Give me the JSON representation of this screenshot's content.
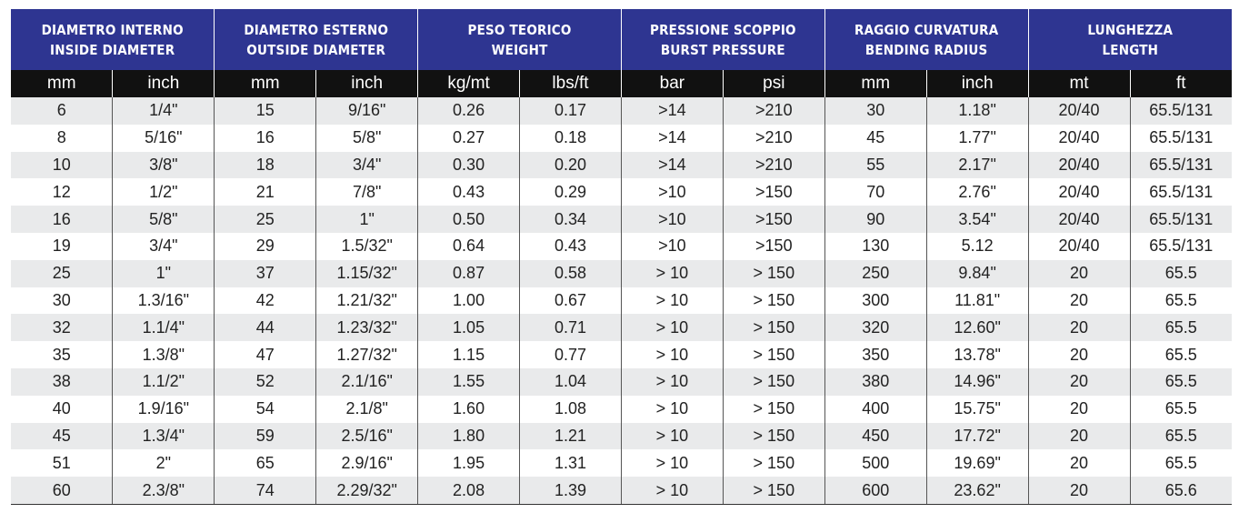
{
  "groups": [
    {
      "it": "DIAMETRO INTERNO",
      "en": "INSIDE DIAMETER"
    },
    {
      "it": "DIAMETRO ESTERNO",
      "en": "OUTSIDE DIAMETER"
    },
    {
      "it": "PESO TEORICO",
      "en": "WEIGHT"
    },
    {
      "it": "PRESSIONE SCOPPIO",
      "en": "BURST PRESSURE"
    },
    {
      "it": "RAGGIO CURVATURA",
      "en": "BENDING RADIUS"
    },
    {
      "it": "LUNGHEZZA",
      "en": "LENGTH"
    }
  ],
  "units": [
    "mm",
    "inch",
    "mm",
    "inch",
    "kg/mt",
    "lbs/ft",
    "bar",
    "psi",
    "mm",
    "inch",
    "mt",
    "ft"
  ],
  "rows": [
    [
      "6",
      "1/4\"",
      "15",
      "9/16\"",
      "0.26",
      "0.17",
      ">14",
      ">210",
      "30",
      "1.18\"",
      "20/40",
      "65.5/131"
    ],
    [
      "8",
      "5/16\"",
      "16",
      "5/8\"",
      "0.27",
      "0.18",
      ">14",
      ">210",
      "45",
      "1.77\"",
      "20/40",
      "65.5/131"
    ],
    [
      "10",
      "3/8\"",
      "18",
      "3/4\"",
      "0.30",
      "0.20",
      ">14",
      ">210",
      "55",
      "2.17\"",
      "20/40",
      "65.5/131"
    ],
    [
      "12",
      "1/2\"",
      "21",
      "7/8\"",
      "0.43",
      "0.29",
      ">10",
      ">150",
      "70",
      "2.76\"",
      "20/40",
      "65.5/131"
    ],
    [
      "16",
      "5/8\"",
      "25",
      "1\"",
      "0.50",
      "0.34",
      ">10",
      ">150",
      "90",
      "3.54\"",
      "20/40",
      "65.5/131"
    ],
    [
      "19",
      "3/4\"",
      "29",
      "1.5/32\"",
      "0.64",
      "0.43",
      ">10",
      ">150",
      "130",
      "5.12",
      "20/40",
      "65.5/131"
    ],
    [
      "25",
      "1\"",
      "37",
      "1.15/32\"",
      "0.87",
      "0.58",
      "> 10",
      "> 150",
      "250",
      "9.84\"",
      "20",
      "65.5"
    ],
    [
      "30",
      "1.3/16\"",
      "42",
      "1.21/32\"",
      "1.00",
      "0.67",
      "> 10",
      "> 150",
      "300",
      "11.81\"",
      "20",
      "65.5"
    ],
    [
      "32",
      "1.1/4\"",
      "44",
      "1.23/32\"",
      "1.05",
      "0.71",
      "> 10",
      "> 150",
      "320",
      "12.60\"",
      "20",
      "65.5"
    ],
    [
      "35",
      "1.3/8\"",
      "47",
      "1.27/32\"",
      "1.15",
      "0.77",
      "> 10",
      "> 150",
      "350",
      "13.78\"",
      "20",
      "65.5"
    ],
    [
      "38",
      "1.1/2\"",
      "52",
      "2.1/16\"",
      "1.55",
      "1.04",
      "> 10",
      "> 150",
      "380",
      "14.96\"",
      "20",
      "65.5"
    ],
    [
      "40",
      "1.9/16\"",
      "54",
      "2.1/8\"",
      "1.60",
      "1.08",
      "> 10",
      "> 150",
      "400",
      "15.75\"",
      "20",
      "65.5"
    ],
    [
      "45",
      "1.3/4\"",
      "59",
      "2.5/16\"",
      "1.80",
      "1.21",
      "> 10",
      "> 150",
      "450",
      "17.72\"",
      "20",
      "65.5"
    ],
    [
      "51",
      "2\"",
      "65",
      "2.9/16\"",
      "1.95",
      "1.31",
      "> 10",
      "> 150",
      "500",
      "19.69\"",
      "20",
      "65.5"
    ],
    [
      "60",
      "2.3/8\"",
      "74",
      "2.29/32\"",
      "2.08",
      "1.39",
      "> 10",
      "> 150",
      "600",
      "23.62\"",
      "20",
      "65.6"
    ]
  ],
  "colors": {
    "header": "#2e3591",
    "unit_row": "#111111",
    "stripe": "#e9eaeb"
  }
}
